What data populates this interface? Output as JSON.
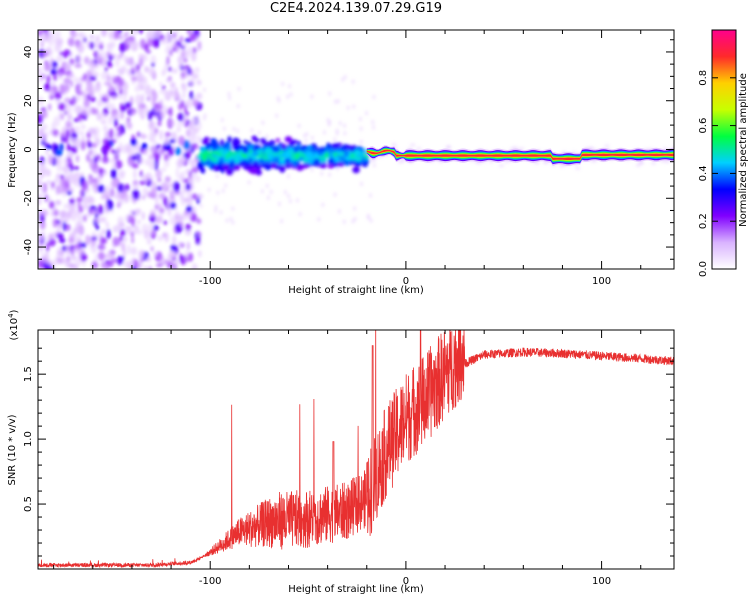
{
  "title": "C2E4.2024.139.07.29.G19",
  "chart_data": [
    {
      "type": "heatmap",
      "xlabel": "Height of straight line (km)",
      "ylabel": "Frequency (Hz)",
      "xlim": [
        -188,
        137
      ],
      "ylim": [
        -49,
        49
      ],
      "x_ticks": [
        -100,
        0,
        100
      ],
      "y_ticks": [
        -40,
        -20,
        0,
        20,
        40
      ],
      "colorbar": {
        "label": "Normalized spectral amplitude",
        "range": [
          0.0,
          1.0
        ],
        "ticks": [
          0.0,
          0.2,
          0.4,
          0.6,
          0.8
        ],
        "tick_labels": [
          "0.0",
          "0.2",
          "0.4",
          "0.6",
          "0.8"
        ],
        "colormap": [
          "#ffffff",
          "#d9b3ff",
          "#8000ff",
          "#0000ff",
          "#00d0ff",
          "#00ff40",
          "#c8ff00",
          "#ffd000",
          "#ff2a2a",
          "#ff008c"
        ]
      },
      "regions": [
        {
          "x_range": [
            -188,
            -105
          ],
          "freq_range": [
            -49,
            49
          ],
          "amplitude": 0.1,
          "description_level": "noise"
        },
        {
          "x_range": [
            -105,
            -20
          ],
          "freq_range": [
            -12,
            8
          ],
          "amplitude": 0.35
        },
        {
          "x_range": [
            -20,
            137
          ],
          "freq_center": -3,
          "freq_width": 3,
          "amplitude": 0.95
        }
      ]
    },
    {
      "type": "line",
      "xlabel": "Height of straight line (km)",
      "ylabel": "SNR (10 * v/v)",
      "multiplier_label": "(x10",
      "multiplier_exp": "4",
      "multiplier_close": ")",
      "xlim": [
        -188,
        137
      ],
      "ylim": [
        0,
        1.84
      ],
      "x_ticks": [
        -100,
        0,
        100
      ],
      "y_ticks": [
        0.5,
        1.0,
        1.5
      ],
      "y_tick_labels": [
        "0.5",
        "1.0",
        "1.5"
      ],
      "color": "#e83030",
      "profile": [
        {
          "x": -188,
          "y": 0.03
        },
        {
          "x": -160,
          "y": 0.03
        },
        {
          "x": -130,
          "y": 0.03
        },
        {
          "x": -110,
          "y": 0.05
        },
        {
          "x": -100,
          "y": 0.12
        },
        {
          "x": -85,
          "y": 0.25
        },
        {
          "x": -70,
          "y": 0.3
        },
        {
          "x": -50,
          "y": 0.32
        },
        {
          "x": -30,
          "y": 0.38
        },
        {
          "x": -18,
          "y": 0.5
        },
        {
          "x": -10,
          "y": 0.8
        },
        {
          "x": 0,
          "y": 1.05
        },
        {
          "x": 10,
          "y": 1.2
        },
        {
          "x": 20,
          "y": 1.4
        },
        {
          "x": 30,
          "y": 1.58
        },
        {
          "x": 40,
          "y": 1.65
        },
        {
          "x": 60,
          "y": 1.67
        },
        {
          "x": 80,
          "y": 1.66
        },
        {
          "x": 100,
          "y": 1.64
        },
        {
          "x": 120,
          "y": 1.62
        },
        {
          "x": 137,
          "y": 1.6
        }
      ]
    }
  ]
}
